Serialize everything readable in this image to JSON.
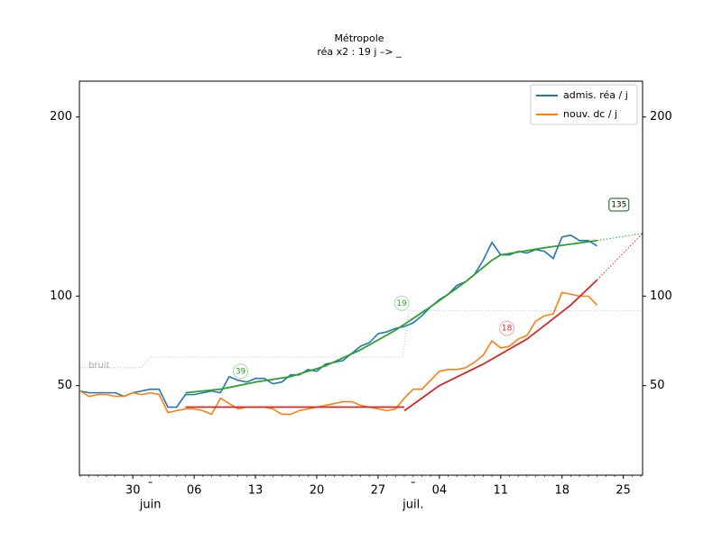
{
  "chart_data": {
    "type": "line",
    "title": "Métropole",
    "subtitle": "réa x2 : 19 j –> _",
    "xlim": [
      -6.1,
      58.2
    ],
    "xticks": [
      {
        "value": 0,
        "label": "30"
      },
      {
        "value": 7,
        "label": "06"
      },
      {
        "value": 14,
        "label": "13"
      },
      {
        "value": 21,
        "label": "20"
      },
      {
        "value": 28,
        "label": "27"
      },
      {
        "value": 35,
        "label": "04"
      },
      {
        "value": 42,
        "label": "11"
      },
      {
        "value": 49,
        "label": "18"
      },
      {
        "value": 56,
        "label": "25"
      }
    ],
    "month_ticks": [
      {
        "value": 2,
        "label": "juin"
      },
      {
        "value": 32,
        "label": "juil."
      }
    ],
    "ylim": [
      0,
      220
    ],
    "yticks": [
      50,
      100,
      200
    ],
    "legend": "upper right",
    "x": [
      -6,
      -5,
      -4,
      -3,
      -2,
      -1,
      0,
      1,
      2,
      3,
      4,
      5,
      6,
      7,
      8,
      9,
      10,
      11,
      12,
      13,
      14,
      15,
      16,
      17,
      18,
      19,
      20,
      21,
      22,
      23,
      24,
      25,
      26,
      27,
      28,
      29,
      30,
      31,
      32,
      33,
      34,
      35,
      36,
      37,
      38,
      39,
      40,
      41,
      42,
      43,
      44,
      45,
      46,
      47,
      48,
      49,
      50,
      51,
      52,
      53
    ],
    "series": [
      {
        "name": "admis. réa / j",
        "color": "#1f77b4",
        "values": [
          47,
          46,
          46,
          46,
          46,
          44,
          46,
          47,
          48,
          48,
          38,
          38,
          45,
          45,
          46,
          47,
          46,
          55,
          53,
          52,
          54,
          54,
          51,
          52,
          56,
          56,
          59,
          58,
          62,
          63,
          64,
          68,
          72,
          74,
          79,
          80,
          82,
          83,
          85,
          89,
          94,
          98,
          101,
          106,
          108,
          112,
          120,
          130,
          123,
          123,
          125,
          124,
          126,
          125,
          121,
          133,
          134,
          131,
          131,
          128
        ]
      },
      {
        "name": "nouv. dc / j",
        "color": "#ff7f0e",
        "values": [
          47,
          44,
          45,
          45,
          44,
          44,
          46,
          45,
          46,
          45,
          35,
          36,
          37,
          37,
          36,
          34,
          43,
          40,
          37,
          38,
          38,
          38,
          37,
          34,
          34,
          36,
          37,
          38,
          39,
          40,
          41,
          41,
          39,
          38,
          37,
          36,
          37,
          43,
          48,
          48,
          53,
          58,
          59,
          59,
          60,
          63,
          67,
          75,
          71,
          72,
          76,
          78,
          86,
          89,
          90,
          102,
          101,
          100,
          100,
          95
        ]
      }
    ],
    "fits": [
      {
        "color": "#2ca02c",
        "dotted": false,
        "x": [
          6,
          10,
          14,
          18,
          22,
          26,
          30,
          34,
          38,
          41,
          42,
          47,
          53
        ],
        "values": [
          46,
          48,
          52,
          55,
          61,
          70,
          81,
          94,
          108,
          120,
          123,
          127,
          131
        ]
      },
      {
        "color": "#2ca02c",
        "dotted": true,
        "x": [
          53,
          58.2
        ],
        "values": [
          131,
          135
        ]
      },
      {
        "color": "#d62728",
        "dotted": false,
        "x": [
          6,
          31
        ],
        "values": [
          38,
          38
        ]
      },
      {
        "color": "#d62728",
        "dotted": false,
        "x": [
          31,
          35,
          40,
          45,
          50,
          53
        ],
        "values": [
          36,
          50,
          62,
          76,
          95,
          109
        ]
      },
      {
        "color": "#d62728",
        "dotted": true,
        "x": [
          53,
          58.2
        ],
        "values": [
          109,
          135
        ]
      }
    ],
    "noise": {
      "x": [
        -6.1,
        1,
        2,
        30.8,
        31.5,
        58.2
      ],
      "values": [
        60,
        60,
        66,
        66,
        92,
        92
      ]
    },
    "noise_label": "bruit",
    "annotations": [
      {
        "text": "39",
        "x": 12.3,
        "y": 58,
        "color": "#2ca02c"
      },
      {
        "text": "19",
        "x": 30.7,
        "y": 96,
        "color": "#2ca02c"
      },
      {
        "text": "18",
        "x": 42.7,
        "y": 82,
        "color": "#d62728"
      },
      {
        "text": "135",
        "x": 55.5,
        "y": 151,
        "color": "#006400"
      }
    ]
  }
}
